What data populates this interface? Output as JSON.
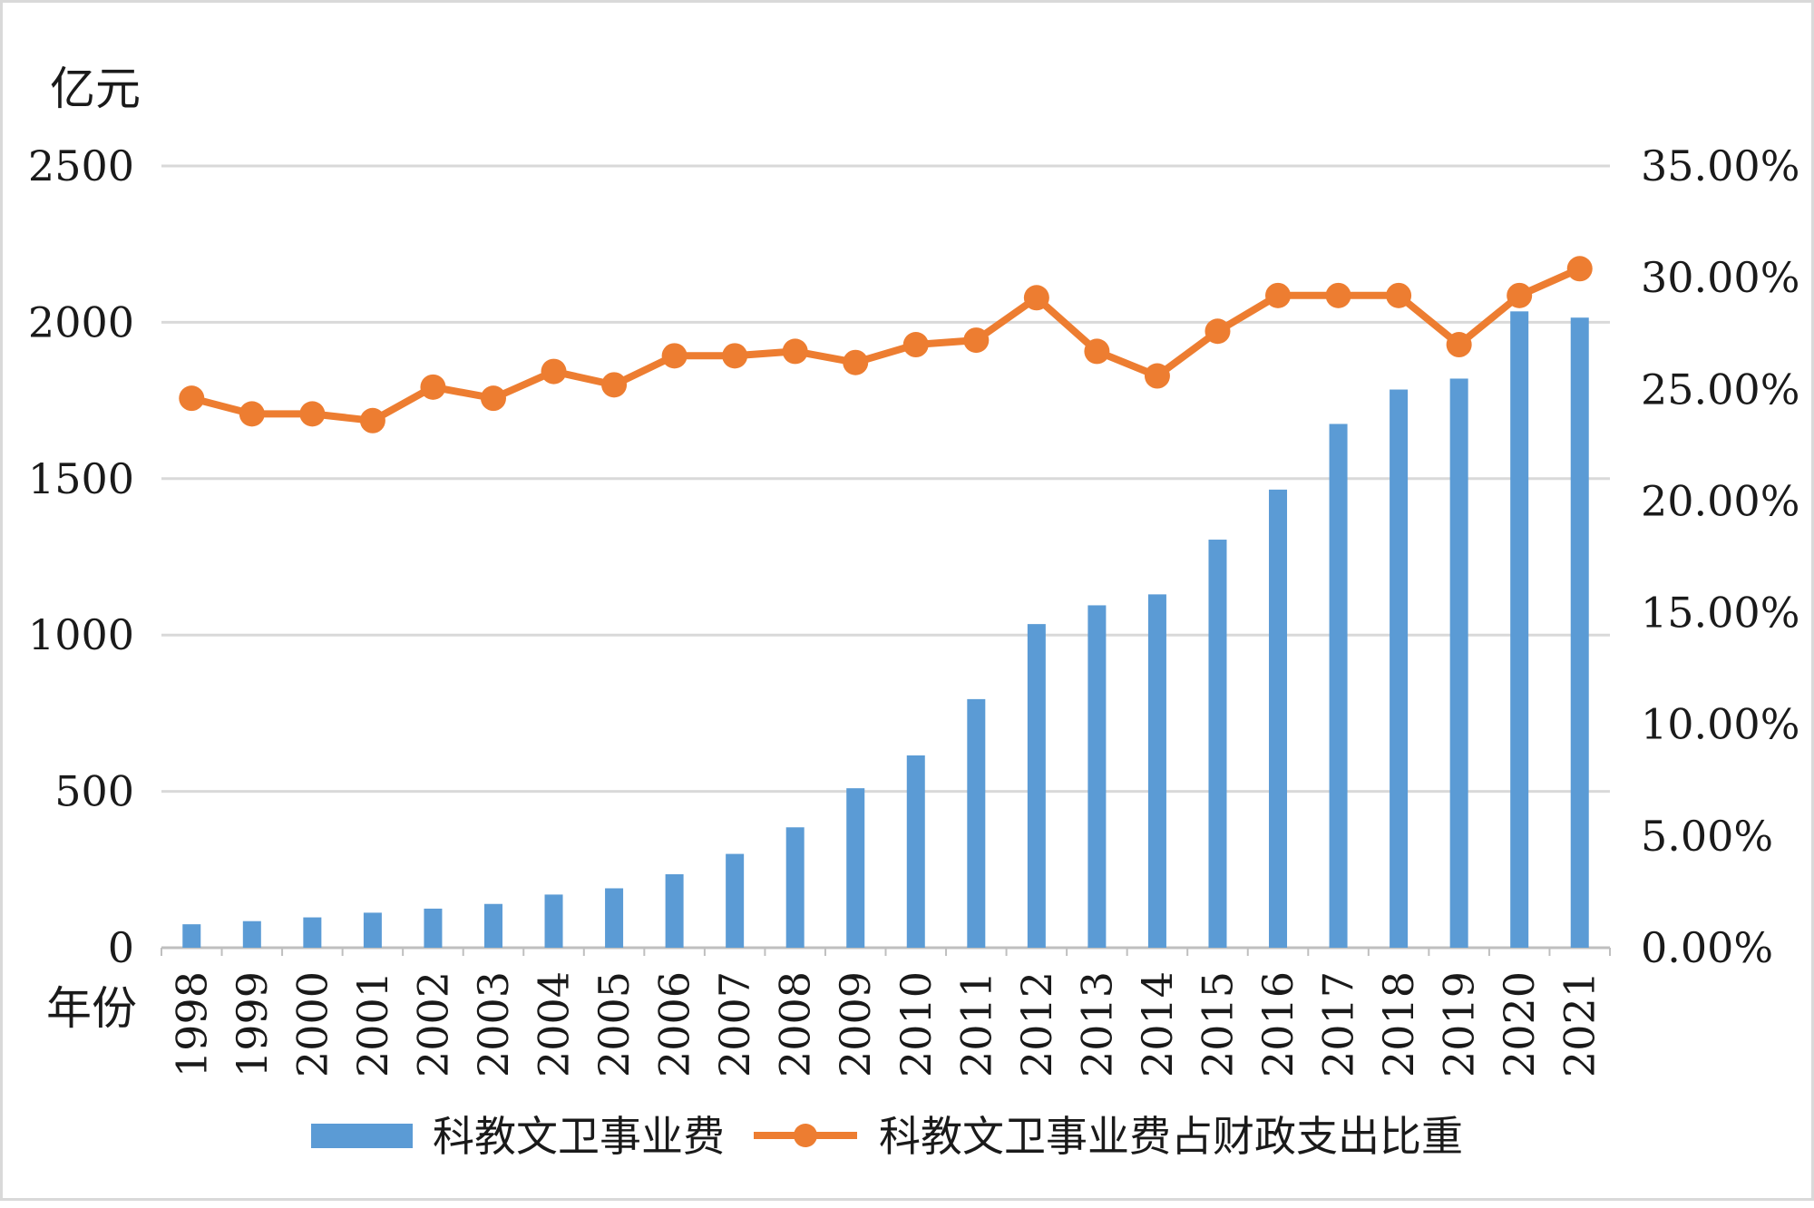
{
  "chart_data": {
    "type": "bar+line",
    "categories": [
      "1998",
      "1999",
      "2000",
      "2001",
      "2002",
      "2003",
      "2004",
      "2005",
      "2006",
      "2007",
      "2008",
      "2009",
      "2010",
      "2011",
      "2012",
      "2013",
      "2014",
      "2015",
      "2016",
      "2017",
      "2018",
      "2019",
      "2020",
      "2021"
    ],
    "series": [
      {
        "name": "科教文卫事业费",
        "type": "bar",
        "axis": "left",
        "color": "#5b9bd5",
        "values": [
          75,
          85,
          97,
          112,
          125,
          140,
          170,
          190,
          235,
          300,
          385,
          510,
          615,
          795,
          1035,
          1095,
          1130,
          1305,
          1465,
          1675,
          1785,
          1820,
          2035,
          2015
        ]
      },
      {
        "name": "科教文卫事业费占财政支出比重",
        "type": "line",
        "axis": "right",
        "color": "#ed7d31",
        "values": [
          24.6,
          23.9,
          23.9,
          23.6,
          25.1,
          24.6,
          25.8,
          25.2,
          26.5,
          26.5,
          26.7,
          26.2,
          27.0,
          27.2,
          29.1,
          26.7,
          25.6,
          27.6,
          29.2,
          29.2,
          29.2,
          27.0,
          29.2,
          30.4
        ]
      }
    ],
    "y_left": {
      "label": "亿元",
      "ylim": [
        0,
        2500
      ],
      "ticks": [
        0,
        500,
        1000,
        1500,
        2000,
        2500
      ],
      "tick_labels": [
        "0",
        "500",
        "1000",
        "1500",
        "2000",
        "2500"
      ]
    },
    "y_right": {
      "ylim": [
        0,
        35
      ],
      "ticks": [
        0,
        5,
        10,
        15,
        20,
        25,
        30,
        35
      ],
      "tick_labels": [
        "0.00%",
        "5.00%",
        "10.00%",
        "15.00%",
        "20.00%",
        "25.00%",
        "30.00%",
        "35.00%"
      ]
    },
    "xlabel": "年份",
    "grid": true,
    "legend_position": "bottom"
  }
}
